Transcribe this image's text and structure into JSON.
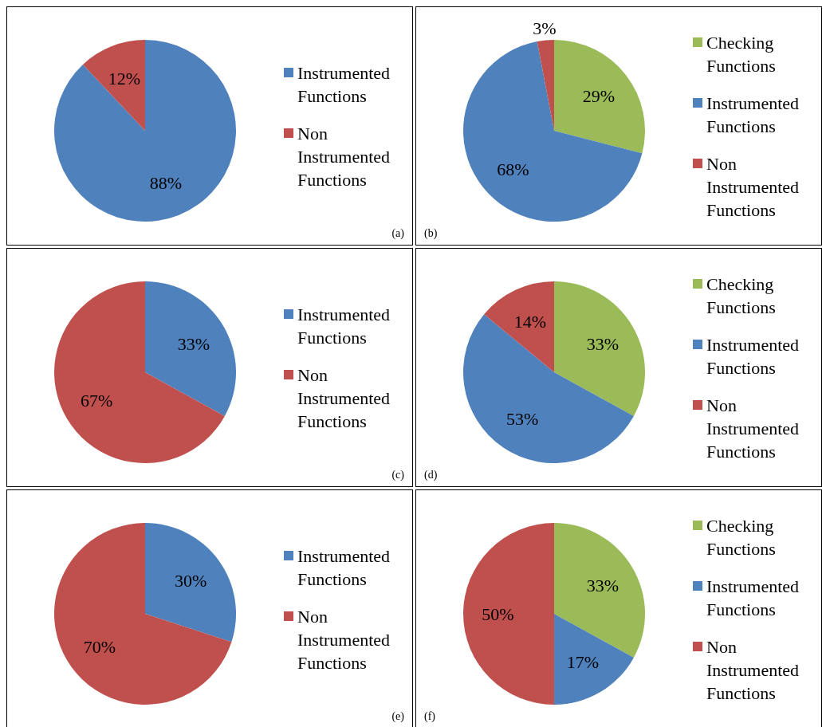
{
  "chart_data": [
    {
      "type": "pie",
      "categories": [
        "Instrumented Functions",
        "Non Instrumented Functions"
      ],
      "values": [
        88,
        12
      ],
      "colors": [
        "#4f81bd",
        "#c0504d"
      ],
      "value_labels": [
        "88%",
        "12%"
      ],
      "legend": "right",
      "annotations": [
        "(a)"
      ]
    },
    {
      "type": "pie",
      "categories": [
        "Checking Functions",
        "Instrumented Functions",
        "Non Instrumented Functions"
      ],
      "values": [
        29,
        68,
        3
      ],
      "colors": [
        "#9bbb59",
        "#4f81bd",
        "#c0504d"
      ],
      "value_labels": [
        "29%",
        "68%",
        "3%"
      ],
      "legend": "right",
      "annotations": [
        "(b)"
      ]
    },
    {
      "type": "pie",
      "categories": [
        "Instrumented Functions",
        "Non Instrumented Functions"
      ],
      "values": [
        33,
        67
      ],
      "colors": [
        "#4f81bd",
        "#c0504d"
      ],
      "value_labels": [
        "33%",
        "67%"
      ],
      "legend": "right",
      "annotations": [
        "(c)"
      ]
    },
    {
      "type": "pie",
      "categories": [
        "Checking Functions",
        "Instrumented Functions",
        "Non Instrumented Functions"
      ],
      "values": [
        33,
        53,
        14
      ],
      "colors": [
        "#9bbb59",
        "#4f81bd",
        "#c0504d"
      ],
      "value_labels": [
        "33%",
        "53%",
        "14%"
      ],
      "legend": "right",
      "annotations": [
        "(d)"
      ]
    },
    {
      "type": "pie",
      "categories": [
        "Instrumented Functions",
        "Non Instrumented Functions"
      ],
      "values": [
        30,
        70
      ],
      "colors": [
        "#4f81bd",
        "#c0504d"
      ],
      "value_labels": [
        "30%",
        "70%"
      ],
      "legend": "right",
      "annotations": [
        "(e)"
      ]
    },
    {
      "type": "pie",
      "categories": [
        "Checking Functions",
        "Instrumented Functions",
        "Non Instrumented Functions"
      ],
      "values": [
        33,
        17,
        50
      ],
      "colors": [
        "#9bbb59",
        "#4f81bd",
        "#c0504d"
      ],
      "value_labels": [
        "33%",
        "17%",
        "50%"
      ],
      "legend": "right",
      "annotations": [
        "(f)"
      ]
    }
  ]
}
